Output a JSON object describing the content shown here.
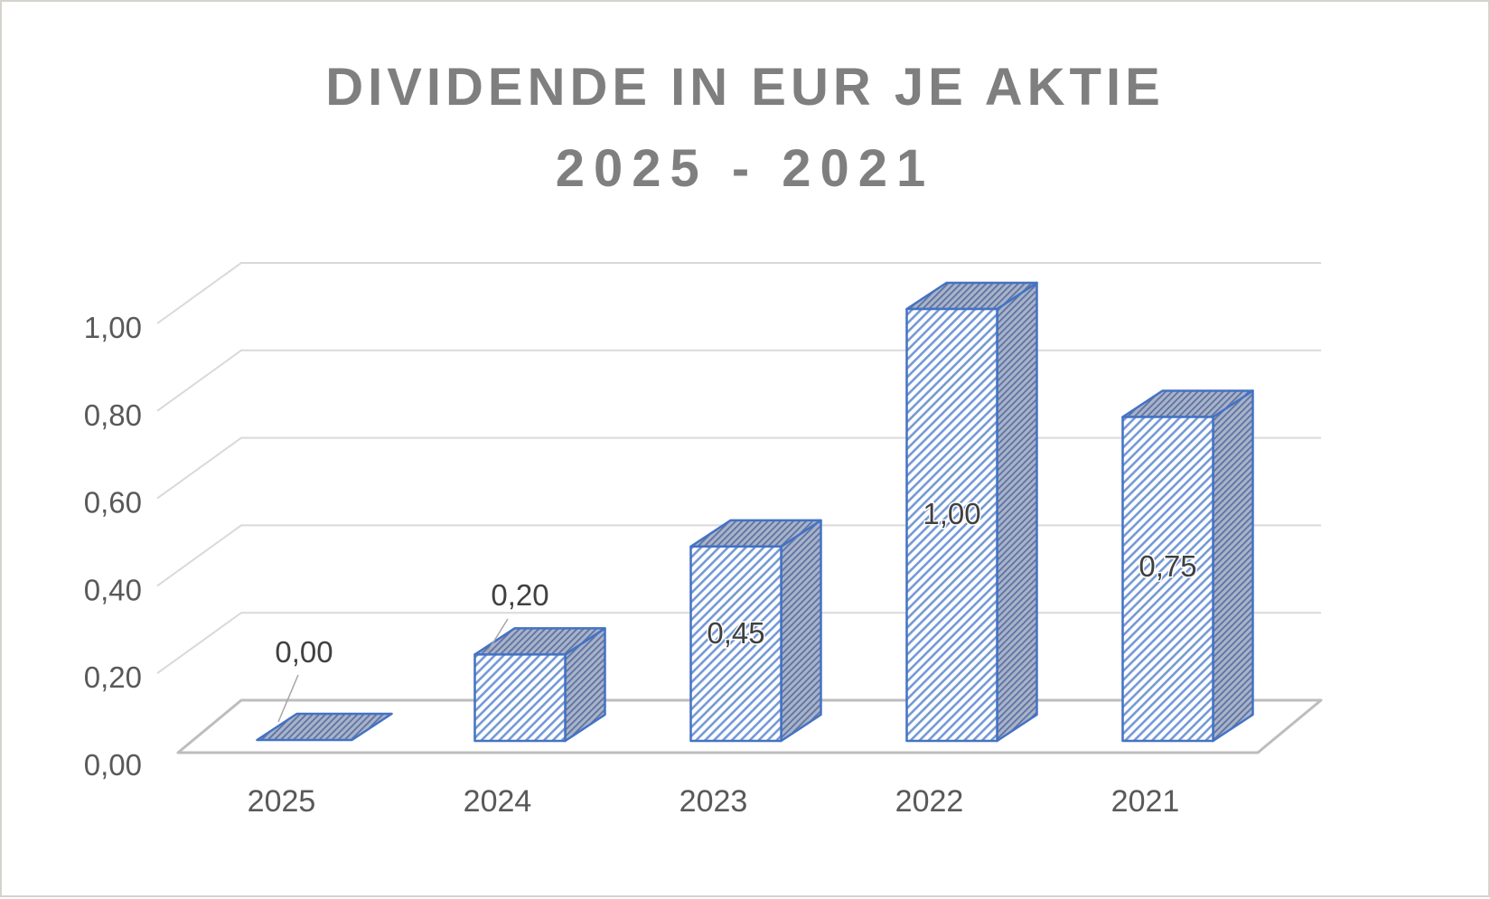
{
  "chart_data": {
    "type": "bar",
    "projection": "3d",
    "title": "DIVIDENDE IN EUR JE AKTIE 2025 - 2021",
    "title_lines": [
      "DIVIDENDE IN EUR JE AKTIE",
      "2025 - 2021"
    ],
    "categories": [
      "2025",
      "2024",
      "2023",
      "2022",
      "2021"
    ],
    "values": [
      0.0,
      0.2,
      0.45,
      1.0,
      0.75
    ],
    "data_labels": [
      "0,00",
      "0,20",
      "0,45",
      "1,00",
      "0,75"
    ],
    "y_ticks": [
      "0,00",
      "0,20",
      "0,40",
      "0,60",
      "0,80",
      "1,00"
    ],
    "y_tick_values": [
      0,
      0.2,
      0.4,
      0.6,
      0.8,
      1.0
    ],
    "ylim": [
      0,
      1.0
    ],
    "xlabel": "",
    "ylabel": "",
    "legend": "none",
    "grid": true,
    "bar_style": "diagonal-hatch",
    "accent_color": "#4472c4",
    "title_color": "#7f7f7f",
    "axis_label_color": "#595959",
    "data_label_color": "#404040",
    "gridline_color": "#d9d9d9",
    "floor_color": "#bdbdbd"
  }
}
